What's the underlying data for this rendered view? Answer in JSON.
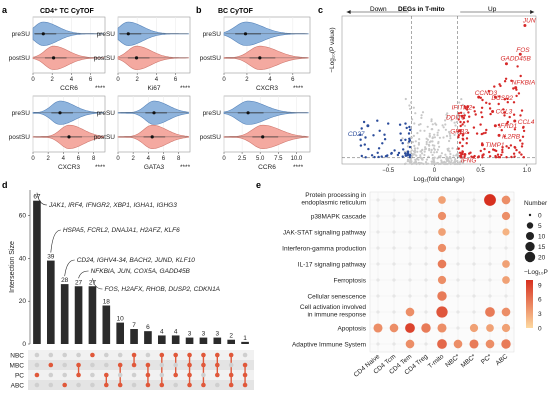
{
  "colors": {
    "blue": "#8fb4dd",
    "blue_stroke": "#5a86bb",
    "red": "#f4a9a0",
    "red_stroke": "#d07a70",
    "deg_up": "#d62828",
    "deg_down": "#2b4c9b",
    "deg_ns": "#c8c8c8",
    "bar": "#2b2b2b",
    "upset_dot": "#e0583a",
    "heat_low": "#fdd9a0",
    "heat_high": "#d7301f"
  },
  "panels": {
    "a": {
      "letter": "a",
      "title": "CD4⁺ TC CyTOF",
      "stars": "****",
      "groups": [
        "preSU",
        "postSU"
      ],
      "sub": [
        {
          "marker": "CCR6",
          "ticks": [
            "0",
            "2",
            "4",
            "6"
          ]
        },
        {
          "marker": "Ki67",
          "ticks": [
            "0",
            "2",
            "4",
            "6"
          ]
        },
        {
          "marker": "CXCR3",
          "ticks": [
            "0",
            "2",
            "4",
            "6",
            "8"
          ]
        },
        {
          "marker": "GATA3",
          "ticks": [
            "0",
            "2",
            "4",
            "6",
            "8"
          ]
        }
      ]
    },
    "b": {
      "letter": "b",
      "title": "BC CyTOF",
      "stars": "****",
      "groups": [
        "preSU",
        "postSU"
      ],
      "sub": [
        {
          "marker": "CXCR3",
          "ticks": [
            "0",
            "2",
            "4",
            "6"
          ]
        },
        {
          "marker": "CCR6",
          "ticks": [
            "0",
            "2.5",
            "5.0",
            "7.5",
            "10.0"
          ]
        }
      ]
    },
    "c": {
      "letter": "c",
      "title": "DEGs in T-mito",
      "down": "Down",
      "up": "Up",
      "xlabel": "Log₂(fold change)",
      "ylabel": "−Log₁₀(P value)",
      "xticks": [
        "−0.5",
        "0",
        "0.5",
        "1.0"
      ],
      "labels": [
        "JUN",
        "FOS",
        "GADD45B",
        "NFKBIA",
        "DUSP2",
        "CCND3",
        "IFITM2",
        "DDIT3",
        "CCL3",
        "CCL4",
        "IFRD1",
        "IL2RB",
        "TIMP1",
        "GRB2",
        "IFNG",
        "CD27"
      ]
    },
    "d": {
      "letter": "d",
      "ylabel": "Intersection Size",
      "yticks": [
        "0",
        "20",
        "40",
        "60"
      ],
      "sets": [
        "NBC",
        "MBC",
        "PC",
        "ABC"
      ],
      "annotations": [
        "JAK1, IRF4, IFNGR2, XBP1, IGHA1, IGHG3",
        "HSPA5, FCRL2, DNAJA1, H2AFZ, KLF6",
        "CD24, IGHV4-34, BACH2, JUND, KLF10",
        "NFKBIA, JUN, COX5A, GADD45B",
        "FOS, H2AFX, RHOB, DUSP2, CDKN1A"
      ]
    },
    "e": {
      "letter": "e",
      "rows": [
        "Protein processing in endoplasmic reticulum",
        "p38MAPK cascade",
        "JAK-STAT signaling pathway",
        "Interferon-gamma production",
        "IL-17 signaling pathway",
        "Ferroptosis",
        "Cellular senescence",
        "Cell activation involved in immune response",
        "Apoptosis",
        "Adaptive Immune System"
      ],
      "cols": [
        "CD4 Naive",
        "CD4 Tcm",
        "CD4 Tem",
        "CD4 Treg",
        "T-mito",
        "NBC*",
        "MBC*",
        "PC*",
        "ABC"
      ],
      "legend_size_title": "Number",
      "legend_sizes": [
        "0",
        "5",
        "10",
        "15",
        "20"
      ],
      "legend_color_title": "−Log₁₀P",
      "legend_colors": [
        "9",
        "6",
        "3",
        "0"
      ]
    }
  },
  "chart_data": [
    {
      "type": "violin",
      "title": "CD4⁺ TC CyTOF",
      "panels": [
        {
          "marker": "CCR6",
          "xlim": [
            0,
            7
          ],
          "groups": [
            "preSU",
            "postSU"
          ],
          "medians": [
            1.0,
            2.0
          ]
        },
        {
          "marker": "Ki67",
          "xlim": [
            0,
            7
          ],
          "groups": [
            "preSU",
            "postSU"
          ],
          "medians": [
            1.0,
            1.8
          ]
        },
        {
          "marker": "CXCR3",
          "xlim": [
            0,
            8
          ],
          "groups": [
            "preSU",
            "postSU"
          ],
          "medians": [
            3.0,
            4.0
          ]
        },
        {
          "marker": "GATA3",
          "xlim": [
            0,
            8
          ],
          "groups": [
            "preSU",
            "postSU"
          ],
          "medians": [
            4.0,
            3.8
          ]
        }
      ]
    },
    {
      "type": "violin",
      "title": "BC CyTOF",
      "panels": [
        {
          "marker": "CXCR3",
          "xlim": [
            0,
            6
          ],
          "groups": [
            "preSU",
            "postSU"
          ],
          "medians": [
            1.5,
            2.5
          ]
        },
        {
          "marker": "CCR6",
          "xlim": [
            0,
            10
          ],
          "groups": [
            "preSU",
            "postSU"
          ],
          "medians": [
            2.8,
            4.5
          ]
        }
      ]
    },
    {
      "type": "scatter",
      "title": "DEGs in T-mito",
      "xlabel": "Log₂(fold change)",
      "ylabel": "−Log₁₀(P value)",
      "xlim": [
        -1.0,
        1.1
      ],
      "thresholds": {
        "fc": [
          -0.25,
          0.25
        ],
        "p": 1.3
      },
      "labeled_points": [
        {
          "gene": "JUN",
          "x": 0.98,
          "y": 29
        },
        {
          "gene": "FOS",
          "x": 0.93,
          "y": 23
        },
        {
          "gene": "GADD45B",
          "x": 0.78,
          "y": 21
        },
        {
          "gene": "NFKBIA",
          "x": 0.88,
          "y": 16
        },
        {
          "gene": "DUSP2",
          "x": 0.66,
          "y": 14
        },
        {
          "gene": "CCND3",
          "x": 0.48,
          "y": 14
        },
        {
          "gene": "IFITM2",
          "x": 0.36,
          "y": 12
        },
        {
          "gene": "DDIT3",
          "x": 0.3,
          "y": 10
        },
        {
          "gene": "CCL3",
          "x": 0.63,
          "y": 11
        },
        {
          "gene": "CCL4",
          "x": 0.87,
          "y": 9
        },
        {
          "gene": "IFRD1",
          "x": 0.66,
          "y": 8
        },
        {
          "gene": "IL2RB",
          "x": 0.7,
          "y": 6
        },
        {
          "gene": "TIMP1",
          "x": 0.52,
          "y": 4
        },
        {
          "gene": "GRB2",
          "x": 0.28,
          "y": 7
        },
        {
          "gene": "IFNG",
          "x": 0.33,
          "y": 2
        },
        {
          "gene": "CD27",
          "x": -0.72,
          "y": 8
        }
      ]
    },
    {
      "type": "bar",
      "title": "",
      "ylabel": "Intersection Size",
      "ylim": [
        0,
        70
      ],
      "values": [
        67,
        39,
        28,
        27,
        27,
        18,
        10,
        7,
        6,
        4,
        4,
        3,
        3,
        3,
        2,
        1
      ],
      "matrix": [
        [
          "PC"
        ],
        [
          "MBC"
        ],
        [
          "ABC"
        ],
        [
          "MBC",
          "PC"
        ],
        [
          "NBC"
        ],
        [
          "PC",
          "ABC"
        ],
        [
          "MBC",
          "ABC"
        ],
        [
          "NBC",
          "MBC"
        ],
        [
          "MBC",
          "PC",
          "ABC"
        ],
        [
          "NBC",
          "ABC"
        ],
        [
          "NBC",
          "PC"
        ],
        [
          "NBC",
          "MBC",
          "PC",
          "ABC"
        ],
        [
          "NBC",
          "MBC",
          "ABC"
        ],
        [
          "NBC",
          "MBC",
          "PC"
        ],
        [
          "NBC",
          "PC",
          "ABC"
        ],
        [
          "MBC",
          "PC",
          "ABC"
        ]
      ]
    },
    {
      "type": "heatmap",
      "title": "",
      "rows": [
        "Protein processing in endoplasmic reticulum",
        "p38MAPK cascade",
        "JAK-STAT signaling pathway",
        "Interferon-gamma production",
        "IL-17 signaling pathway",
        "Ferroptosis",
        "Cellular senescence",
        "Cell activation involved in immune response",
        "Apoptosis",
        "Adaptive Immune System"
      ],
      "cols": [
        "CD4 Naive",
        "CD4 Tcm",
        "CD4 Tem",
        "CD4 Treg",
        "T-mito",
        "NBC*",
        "MBC*",
        "PC*",
        "ABC"
      ],
      "size_range": [
        0,
        20
      ],
      "color_range": [
        0,
        9
      ],
      "cells": [
        [
          0,
          0,
          0,
          0,
          [
            4,
            3
          ],
          0,
          0,
          [
            16,
            9
          ],
          [
            6,
            4
          ]
        ],
        [
          0,
          0,
          0,
          0,
          [
            5,
            4
          ],
          0,
          0,
          0,
          [
            5,
            4
          ]
        ],
        [
          0,
          0,
          0,
          0,
          [
            4,
            3
          ],
          0,
          0,
          0,
          [
            3,
            2
          ]
        ],
        [
          0,
          0,
          0,
          0,
          [
            5,
            4
          ],
          0,
          0,
          0,
          0
        ],
        [
          0,
          0,
          0,
          0,
          [
            6,
            5
          ],
          0,
          0,
          0,
          [
            4,
            3
          ]
        ],
        [
          0,
          0,
          0,
          0,
          [
            5,
            4
          ],
          0,
          0,
          0,
          [
            4,
            3
          ]
        ],
        [
          0,
          0,
          0,
          0,
          [
            8,
            5
          ],
          0,
          0,
          0,
          0
        ],
        [
          0,
          0,
          [
            6,
            4
          ],
          0,
          [
            14,
            7
          ],
          0,
          0,
          [
            9,
            5
          ],
          [
            6,
            4
          ]
        ],
        [
          [
            7,
            4
          ],
          [
            6,
            4
          ],
          [
            9,
            8
          ],
          [
            8,
            5
          ],
          [
            7,
            4
          ],
          0,
          [
            5,
            3
          ],
          [
            4,
            3
          ],
          [
            5,
            3
          ]
        ],
        [
          0,
          0,
          [
            6,
            4
          ],
          0,
          [
            9,
            6
          ],
          [
            6,
            4
          ],
          [
            7,
            5
          ],
          [
            6,
            4
          ],
          [
            8,
            5
          ]
        ]
      ]
    }
  ]
}
